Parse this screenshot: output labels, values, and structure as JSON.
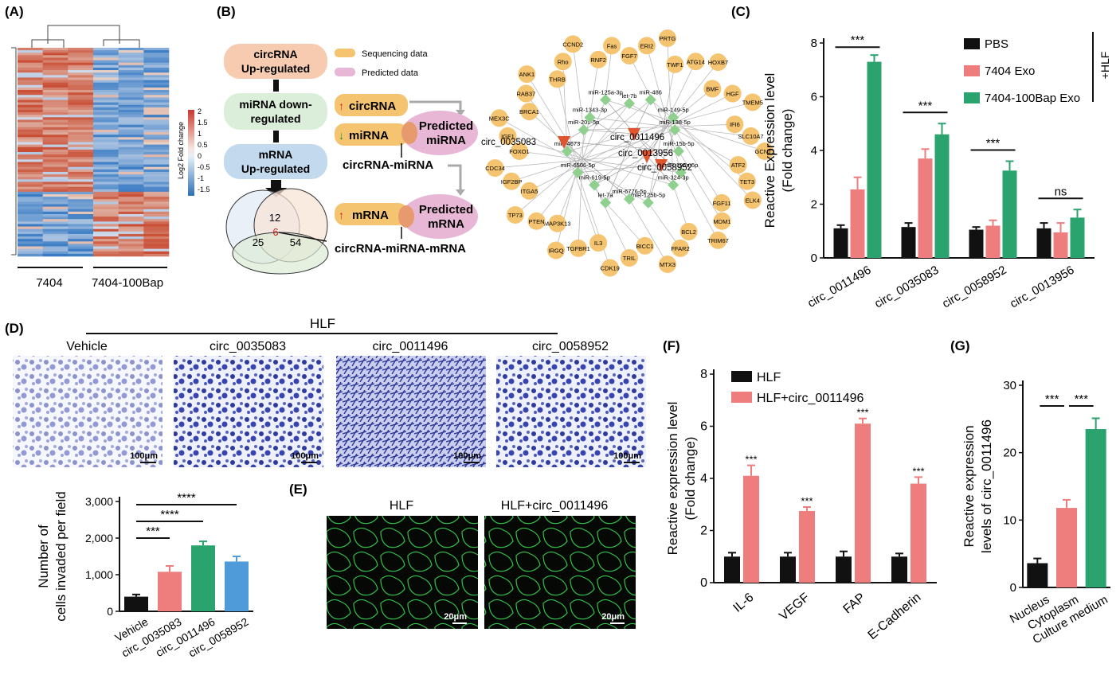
{
  "panel_labels": {
    "a": "(A)",
    "b": "(B)",
    "c": "(C)",
    "d": "(D)",
    "e": "(E)",
    "f": "(F)",
    "g": "(G)"
  },
  "panel_a": {
    "group_labels": [
      "7404",
      "7404-100Bap"
    ],
    "colorbar_title": "Log2 Fold change",
    "colorbar_ticks": [
      "2",
      "1.5",
      "1",
      "0.5",
      "0",
      "-0.5",
      "-1",
      "-1.5"
    ]
  },
  "panel_b": {
    "flow": [
      "circRNA Up-regulated",
      "miRNA down-regulated",
      "mRNA Up-regulated"
    ],
    "legend": [
      "Sequencing data",
      "Predicted data"
    ],
    "boxes": {
      "circrna": "circRNA",
      "mirna": "miRNA",
      "mrna": "mRNA",
      "pred_mirna": "Predicted miRNA",
      "pred_mrna": "Predicted mRNA"
    },
    "result_1": "circRNA-miRNA",
    "result_2": "circRNA-miRNA-mRNA",
    "venn": {
      "a": "12",
      "b": "25",
      "c": "54",
      "center": "6"
    },
    "network_hubs": [
      "circ_0035083",
      "circ_0011496",
      "circ_0013956",
      "circ_0058952"
    ],
    "network_mirnas": [
      "miR-15b-5p",
      "miR-196a-5p",
      "miR-324-3p",
      "miR-125b-5p",
      "miR-6776-5p",
      "let-7a",
      "miR-619-5p",
      "miR-6506-5p",
      "miR-4673",
      "miR-205-5p",
      "miR-1343-3p",
      "miR-125a-3p",
      "let-7b",
      "miR-486",
      "miR-149-5p",
      "miR-138-5p"
    ],
    "network_genes": [
      "FGF7",
      "ERI2",
      "PRTG",
      "TWF1",
      "ATG14",
      "HOXB7",
      "BMF",
      "HGF",
      "TMEM5",
      "IFI6",
      "SLC10A7",
      "GCNT1",
      "ATF2",
      "TET3",
      "ELK4",
      "FGF11",
      "MDM1",
      "TRIM67",
      "BCL2",
      "FFAR2",
      "MTX3",
      "BICC1",
      "TRIL",
      "CDK19",
      "IL3",
      "TGFBR1",
      "IRGQ",
      "MAP3K13",
      "PTEN",
      "TP73",
      "ITGA5",
      "IGF2BP",
      "CDC34",
      "FOXO1",
      "IGF1",
      "MEX3C",
      "BRCA1",
      "RAB37",
      "ANK1",
      "THRB",
      "Rho",
      "CCND2",
      "RNF2",
      "Fas"
    ]
  },
  "chart_data": [
    {
      "type": "bar",
      "panel": "C",
      "categories": [
        "circ_0011496",
        "circ_0035083",
        "circ_0058952",
        "circ_0013956"
      ],
      "series": [
        {
          "name": "PBS",
          "values": [
            1.1,
            1.15,
            1.05,
            1.1
          ],
          "errors": [
            0.12,
            0.15,
            0.1,
            0.2
          ]
        },
        {
          "name": "7404 Exo",
          "values": [
            2.55,
            3.7,
            1.2,
            0.95
          ],
          "errors": [
            0.45,
            0.35,
            0.2,
            0.35
          ]
        },
        {
          "name": "7404-100Bap Exo",
          "values": [
            7.3,
            4.6,
            3.25,
            1.5
          ],
          "errors": [
            0.25,
            0.4,
            0.35,
            0.3
          ]
        }
      ],
      "ylabel": "Reactive Expression level (Fold change)",
      "ylim": [
        0,
        8
      ],
      "yticks": [
        0,
        2,
        4,
        6,
        8
      ],
      "side_label": "+HLF",
      "significance": [
        "***",
        "***",
        "***",
        "ns"
      ]
    },
    {
      "type": "bar",
      "panel": "D",
      "categories": [
        "Vehicle",
        "circ_0035083",
        "circ_0011496",
        "circ_0058952"
      ],
      "values": [
        400,
        1080,
        1800,
        1360
      ],
      "errors": [
        60,
        160,
        110,
        140
      ],
      "ylabel": "Number of cells invaded per field",
      "ylim": [
        0,
        3000
      ],
      "yticks": [
        "0",
        "1,000",
        "2,000",
        "3,000"
      ],
      "significance": [
        "***",
        "****",
        "****"
      ],
      "image_header": "HLF",
      "image_titles": [
        "Vehicle",
        "circ_0035083",
        "circ_0011496",
        "circ_0058952"
      ],
      "scale": "100μm"
    },
    {
      "type": "bar",
      "panel": "F",
      "categories": [
        "IL-6",
        "VEGF",
        "FAP",
        "E-Cadherin"
      ],
      "series": [
        {
          "name": "HLF",
          "values": [
            1.0,
            1.0,
            1.0,
            1.0
          ],
          "errors": [
            0.15,
            0.15,
            0.2,
            0.12
          ]
        },
        {
          "name": "HLF+circ_0011496",
          "values": [
            4.1,
            2.75,
            6.1,
            3.8
          ],
          "errors": [
            0.4,
            0.15,
            0.2,
            0.25
          ]
        }
      ],
      "ylabel": "Reactive expression level (Fold change)",
      "ylim": [
        0,
        8
      ],
      "yticks": [
        0,
        2,
        4,
        6,
        8
      ],
      "significance": [
        "***",
        "***",
        "***",
        "***"
      ]
    },
    {
      "type": "bar",
      "panel": "G",
      "categories": [
        "Nucleus",
        "Cytoplasm",
        "Culture medium"
      ],
      "values": [
        3.6,
        11.8,
        23.5
      ],
      "errors": [
        0.7,
        1.2,
        1.6
      ],
      "ylabel": "Reactive expression levels of circ_0011496",
      "ylim": [
        0,
        30
      ],
      "yticks": [
        0,
        10,
        20,
        30
      ],
      "significance": [
        "***",
        "***"
      ]
    }
  ],
  "panel_e": {
    "titles": [
      "HLF",
      "HLF+circ_0011496"
    ],
    "scale": "20μm"
  },
  "colors": {
    "black": "#111111",
    "pink": "#ee7d7d",
    "green": "#2ba36e",
    "blue": "#4f9bd9",
    "orange": "#f5c470",
    "purple": "#e8b7d6"
  }
}
